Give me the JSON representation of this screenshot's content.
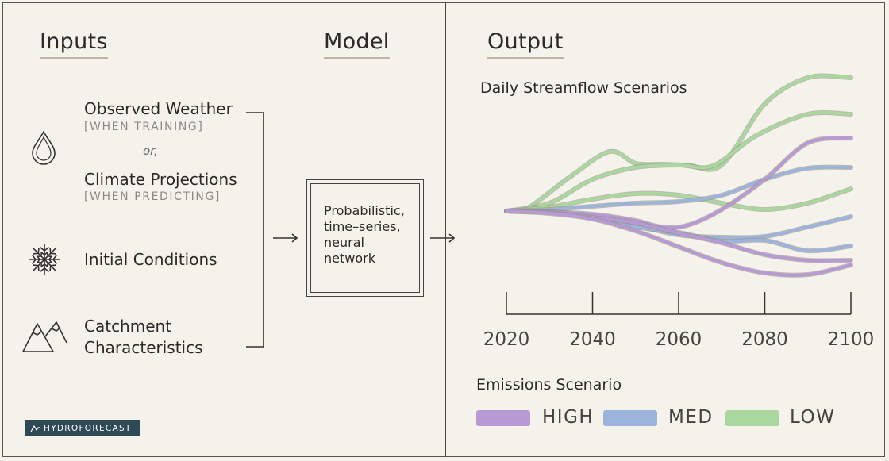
{
  "inputs": {
    "heading": "Inputs",
    "observed_weather": "Observed Weather",
    "when_training": "[WHEN TRAINING]",
    "or_text": "or,",
    "climate_projections": "Climate Projections",
    "when_predicting": "[WHEN PREDICTING]",
    "initial_conditions": "Initial Conditions",
    "catchment_line1": "Catchment",
    "catchment_line2": "Characteristics"
  },
  "model": {
    "heading": "Model",
    "description": "Probabilistic,\ntime–series,\nneural\nnetwork"
  },
  "output": {
    "heading": "Output"
  },
  "logo_text": "HYDROFORECAST",
  "icons": {
    "weather": "droplet-icon",
    "initial": "snowflake-icon",
    "catchment": "mountains-icon",
    "arrows": "arrow-right-icon"
  },
  "colors": {
    "high": "#b79ad4",
    "med": "#9cb3dc",
    "low": "#a9d79d",
    "logo_bg": "#2f4a57"
  },
  "chart_data": {
    "type": "line",
    "title": "Daily Streamflow Scenarios",
    "x_ticks": [
      2020,
      2040,
      2060,
      2080,
      2100
    ],
    "xlim": [
      2020,
      2100
    ],
    "y_axis_shown": false,
    "legend": {
      "title": "Emissions Scenario",
      "entries": [
        {
          "label": "HIGH",
          "color": "#b79ad4"
        },
        {
          "label": "MED",
          "color": "#9cb3dc"
        },
        {
          "label": "LOW",
          "color": "#a9d79d"
        }
      ],
      "placement": "bottom"
    },
    "series": [
      {
        "scenario": "LOW",
        "x": [
          2020,
          2025,
          2035,
          2044,
          2050,
          2056,
          2062,
          2070,
          2080,
          2090,
          2100
        ],
        "y": [
          0,
          4,
          44,
          75,
          60,
          59,
          58,
          58,
          135,
          168,
          168
        ]
      },
      {
        "scenario": "LOW",
        "x": [
          2020,
          2030,
          2040,
          2050,
          2060,
          2068,
          2078,
          2090,
          2100
        ],
        "y": [
          0,
          10,
          40,
          55,
          58,
          57,
          95,
          122,
          122
        ]
      },
      {
        "scenario": "LOW",
        "x": [
          2020,
          2030,
          2040,
          2050,
          2060,
          2070,
          2080,
          2090,
          2100
        ],
        "y": [
          0,
          5,
          15,
          22,
          20,
          10,
          2,
          10,
          28
        ]
      },
      {
        "scenario": "MED",
        "x": [
          2020,
          2030,
          2040,
          2050,
          2060,
          2070,
          2080,
          2090,
          2100
        ],
        "y": [
          0,
          2,
          6,
          10,
          12,
          20,
          40,
          54,
          55
        ]
      },
      {
        "scenario": "MED",
        "x": [
          2020,
          2030,
          2040,
          2050,
          2060,
          2070,
          2080,
          2090,
          2100
        ],
        "y": [
          0,
          -1,
          -6,
          -18,
          -30,
          -33,
          -32,
          -20,
          -7
        ]
      },
      {
        "scenario": "MED",
        "x": [
          2020,
          2030,
          2040,
          2050,
          2060,
          2070,
          2080,
          2090,
          2100
        ],
        "y": [
          0,
          -1,
          -8,
          -20,
          -27,
          -38,
          -37,
          -50,
          -44
        ]
      },
      {
        "scenario": "HIGH",
        "x": [
          2020,
          2030,
          2040,
          2050,
          2056,
          2062,
          2070,
          2080,
          2090,
          2100
        ],
        "y": [
          0,
          -1,
          -4,
          -12,
          -20,
          -18,
          2,
          40,
          86,
          92
        ]
      },
      {
        "scenario": "HIGH",
        "x": [
          2020,
          2030,
          2040,
          2050,
          2060,
          2070,
          2080,
          2090,
          2100
        ],
        "y": [
          0,
          -2,
          -8,
          -15,
          -28,
          -40,
          -55,
          -62,
          -62
        ]
      },
      {
        "scenario": "HIGH",
        "x": [
          2020,
          2030,
          2040,
          2050,
          2060,
          2070,
          2080,
          2090,
          2100
        ],
        "y": [
          0,
          -3,
          -10,
          -25,
          -45,
          -65,
          -78,
          -80,
          -68
        ]
      }
    ]
  }
}
